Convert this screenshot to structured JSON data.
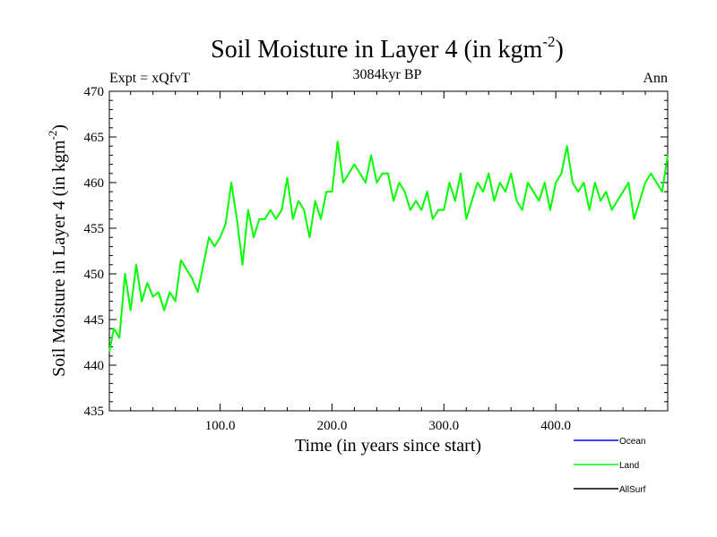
{
  "chart_data": {
    "type": "line",
    "title_main": "Soil Moisture in Layer 4 (in kgm",
    "title_sup": "-2",
    "title_close": ")",
    "subtitle_left": "Expt = xQfvT",
    "subtitle_center": "3084kyr BP",
    "subtitle_right": "Ann",
    "xlabel": "Time (in years since start)",
    "ylabel_main": "Soil Moisture in Layer 4 (in kgm",
    "ylabel_sup": "-2",
    "ylabel_close": ")",
    "xlim": [
      1,
      500
    ],
    "ylim": [
      435,
      470
    ],
    "x_ticks": [
      100,
      200,
      300,
      400
    ],
    "x_tick_labels": [
      "100.0",
      "200.0",
      "300.0",
      "400.0"
    ],
    "y_ticks": [
      435,
      440,
      445,
      450,
      455,
      460,
      465,
      470
    ],
    "y_tick_labels": [
      "435",
      "440",
      "445",
      "450",
      "455",
      "460",
      "465",
      "470"
    ],
    "legend": [
      {
        "name": "Ocean",
        "color": "#0000ff"
      },
      {
        "name": "Land",
        "color": "#00ff00"
      },
      {
        "name": "AllSurf",
        "color": "#000000"
      }
    ],
    "series": [
      {
        "name": "Land",
        "color": "#00ff00",
        "x": [
          1,
          5,
          10,
          15,
          20,
          25,
          30,
          35,
          40,
          45,
          50,
          55,
          60,
          65,
          70,
          75,
          80,
          85,
          90,
          95,
          100,
          105,
          110,
          115,
          120,
          125,
          130,
          135,
          140,
          145,
          150,
          155,
          160,
          165,
          170,
          175,
          180,
          185,
          190,
          195,
          200,
          205,
          210,
          215,
          220,
          225,
          230,
          235,
          240,
          245,
          250,
          255,
          260,
          265,
          270,
          275,
          280,
          285,
          290,
          295,
          300,
          305,
          310,
          315,
          320,
          325,
          330,
          335,
          340,
          345,
          350,
          355,
          360,
          365,
          370,
          375,
          380,
          385,
          390,
          395,
          400,
          405,
          410,
          415,
          420,
          425,
          430,
          435,
          440,
          445,
          450,
          455,
          460,
          465,
          470,
          475,
          480,
          485,
          490,
          495,
          500
        ],
        "values": [
          441.5,
          444,
          443,
          450,
          446,
          451,
          447,
          449,
          447.5,
          448,
          446,
          448,
          447,
          451.5,
          450.5,
          449.5,
          448,
          451,
          454,
          453,
          454,
          455.5,
          460,
          456,
          451,
          457,
          454,
          456,
          456,
          457,
          456,
          457,
          460.5,
          456,
          458,
          457,
          454,
          458,
          456,
          459,
          459,
          464.5,
          460,
          461,
          462,
          461,
          460,
          463,
          460,
          461,
          461,
          458,
          460,
          459,
          457,
          458,
          457,
          459,
          456,
          457,
          457,
          460,
          458,
          461,
          456,
          458,
          460,
          459,
          461,
          458,
          460,
          459,
          461,
          458,
          457,
          460,
          459,
          458,
          460,
          457,
          460,
          461,
          464,
          460,
          459,
          460,
          457,
          460,
          458,
          459,
          457,
          458,
          459,
          460,
          456,
          458,
          460,
          461,
          460,
          459,
          463
        ]
      }
    ]
  }
}
